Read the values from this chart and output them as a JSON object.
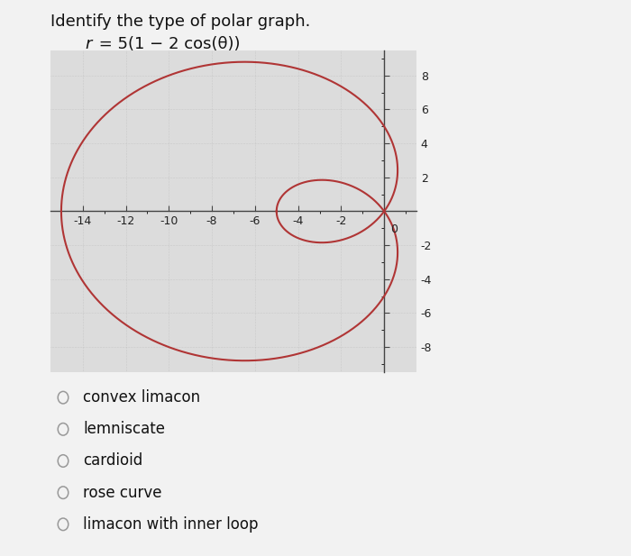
{
  "title_line1": "Identify the type of polar graph.",
  "equation_r": "r",
  "equation_rest": " = 5(1 − 2 cos(θ))",
  "curve_color": "#b03535",
  "background_color": "#dcdcdc",
  "outer_background": "#f2f2f2",
  "xlim": [
    -15.5,
    1.5
  ],
  "ylim": [
    -9.5,
    9.5
  ],
  "xticks": [
    -14,
    -12,
    -10,
    -8,
    -6,
    -4,
    -2
  ],
  "yticks": [
    -8,
    -6,
    -4,
    -2,
    2,
    4,
    6,
    8
  ],
  "choices": [
    "convex limacon",
    "lemniscate",
    "cardioid",
    "rose curve",
    "limacon with inner loop"
  ],
  "choice_fontsize": 12,
  "title_fontsize": 13,
  "eq_fontsize": 13,
  "tick_fontsize": 9
}
